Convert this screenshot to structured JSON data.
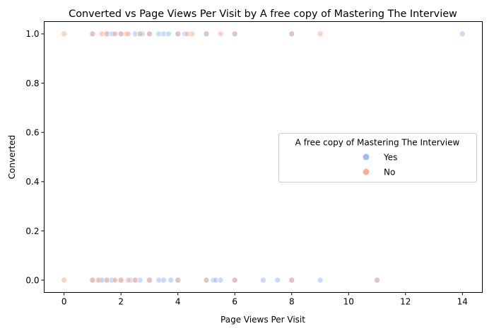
{
  "chart_data": {
    "type": "scatter",
    "title": "Converted vs Page Views Per Visit by A free copy of Mastering The Interview",
    "xlabel": "Page Views Per Visit",
    "ylabel": "Converted",
    "xlim": [
      -0.7,
      14.7
    ],
    "ylim": [
      -0.05,
      1.05
    ],
    "xticks": [
      0,
      2,
      4,
      6,
      8,
      10,
      12,
      14
    ],
    "xtick_labels": [
      "0",
      "2",
      "4",
      "6",
      "8",
      "10",
      "12",
      "14"
    ],
    "yticks": [
      0.0,
      0.2,
      0.4,
      0.6,
      0.8,
      1.0
    ],
    "ytick_labels": [
      "0.0",
      "0.2",
      "0.4",
      "0.6",
      "0.8",
      "1.0"
    ],
    "grid": false,
    "legend": {
      "title": "A free copy of Mastering The Interview",
      "placement": "center-right"
    },
    "series": [
      {
        "name": "Yes",
        "color": "#9ebcf8",
        "points": [
          [
            1.0,
            1
          ],
          [
            1.5,
            1
          ],
          [
            1.67,
            1
          ],
          [
            1.75,
            1
          ],
          [
            2.0,
            1
          ],
          [
            2.5,
            1
          ],
          [
            2.67,
            1
          ],
          [
            2.75,
            1
          ],
          [
            3.0,
            1
          ],
          [
            3.33,
            1
          ],
          [
            3.5,
            1
          ],
          [
            3.67,
            1
          ],
          [
            4.0,
            1
          ],
          [
            4.25,
            1
          ],
          [
            5.0,
            1
          ],
          [
            6.0,
            1
          ],
          [
            8.0,
            1
          ],
          [
            14.0,
            1
          ],
          [
            1.0,
            0
          ],
          [
            1.25,
            0
          ],
          [
            1.33,
            0
          ],
          [
            1.5,
            0
          ],
          [
            1.67,
            0
          ],
          [
            1.75,
            0
          ],
          [
            2.0,
            0
          ],
          [
            2.33,
            0
          ],
          [
            2.5,
            0
          ],
          [
            2.67,
            0
          ],
          [
            3.0,
            0
          ],
          [
            3.33,
            0
          ],
          [
            3.5,
            0
          ],
          [
            3.75,
            0
          ],
          [
            4.0,
            0
          ],
          [
            5.0,
            0
          ],
          [
            5.25,
            0
          ],
          [
            5.33,
            0
          ],
          [
            5.5,
            0
          ],
          [
            6.0,
            0
          ],
          [
            7.0,
            0
          ],
          [
            7.5,
            0
          ],
          [
            8.0,
            0
          ],
          [
            9.0,
            0
          ],
          [
            11.0,
            0
          ]
        ]
      },
      {
        "name": "No",
        "color": "#f5b193",
        "points": [
          [
            0.0,
            1
          ],
          [
            1.0,
            1
          ],
          [
            1.33,
            1
          ],
          [
            1.5,
            1
          ],
          [
            1.8,
            1
          ],
          [
            2.0,
            1
          ],
          [
            2.2,
            1
          ],
          [
            2.25,
            1
          ],
          [
            2.67,
            1
          ],
          [
            3.0,
            1
          ],
          [
            4.0,
            1
          ],
          [
            4.33,
            1
          ],
          [
            4.5,
            1
          ],
          [
            5.0,
            1
          ],
          [
            5.5,
            1
          ],
          [
            6.0,
            1
          ],
          [
            8.0,
            1
          ],
          [
            9.0,
            1
          ],
          [
            0.0,
            0
          ],
          [
            1.0,
            0
          ],
          [
            1.2,
            0
          ],
          [
            1.5,
            0
          ],
          [
            1.8,
            0
          ],
          [
            2.0,
            0
          ],
          [
            2.25,
            0
          ],
          [
            2.5,
            0
          ],
          [
            3.0,
            0
          ],
          [
            4.0,
            0
          ],
          [
            5.0,
            0
          ],
          [
            6.0,
            0
          ],
          [
            8.0,
            0
          ],
          [
            11.0,
            0
          ]
        ]
      }
    ]
  }
}
